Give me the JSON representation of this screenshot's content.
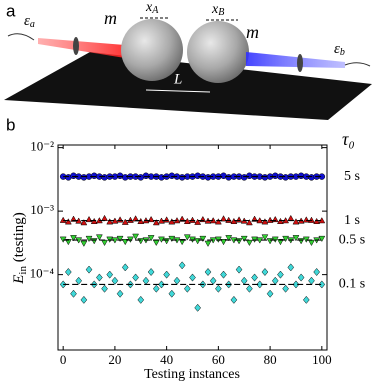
{
  "panel_labels": [
    "a",
    "b"
  ],
  "diagram": {
    "mass_left": "m",
    "mass_right": "m",
    "x_A": [
      "x",
      "A"
    ],
    "x_B": [
      "x",
      "B"
    ],
    "L": "L",
    "eps_a": [
      "ε",
      "a"
    ],
    "eps_b": [
      "ε",
      "b"
    ]
  },
  "chart_data": {
    "type": "scatter",
    "log_y": true,
    "xlabel": "Testing instances",
    "ylabel": [
      "E",
      "in",
      " (testing)"
    ],
    "legend_title": "τ₀",
    "xlim": [
      -2,
      102
    ],
    "xticks": [
      0,
      20,
      40,
      60,
      80,
      100
    ],
    "ylim": [
      6.5e-06,
      0.011
    ],
    "yticks": [
      {
        "value": 0.0001,
        "label": "10⁻⁴"
      },
      {
        "value": 0.001,
        "label": "10⁻³"
      },
      {
        "value": 0.01,
        "label": "10⁻²"
      }
    ],
    "x": [
      0,
      2,
      4,
      6,
      8,
      10,
      12,
      14,
      16,
      18,
      20,
      22,
      24,
      26,
      28,
      30,
      32,
      34,
      36,
      38,
      40,
      42,
      44,
      46,
      48,
      50,
      52,
      54,
      56,
      58,
      60,
      62,
      64,
      66,
      68,
      70,
      72,
      74,
      76,
      78,
      80,
      82,
      84,
      86,
      88,
      90,
      92,
      94,
      96,
      98,
      100
    ],
    "series": [
      {
        "name": "5 s",
        "color": "#1010d0",
        "marker": "circle",
        "mean": 0.0035,
        "values": [
          0.0035,
          0.0034,
          0.0036,
          0.0035,
          0.0034,
          0.0035,
          0.0036,
          0.0035,
          0.0034,
          0.0035,
          0.0035,
          0.0036,
          0.0034,
          0.0035,
          0.0035,
          0.0034,
          0.0036,
          0.0035,
          0.0035,
          0.0034,
          0.0035,
          0.0036,
          0.0035,
          0.0034,
          0.0035,
          0.0035,
          0.0036,
          0.0035,
          0.0034,
          0.0035,
          0.0035,
          0.0036,
          0.0034,
          0.0035,
          0.0035,
          0.0034,
          0.0036,
          0.0035,
          0.0035,
          0.0034,
          0.0035,
          0.0036,
          0.0035,
          0.0034,
          0.0035,
          0.0035,
          0.0036,
          0.0035,
          0.0034,
          0.0035,
          0.0035
        ]
      },
      {
        "name": "1 s",
        "color": "#d01010",
        "marker": "triangle-up",
        "mean": 0.00071,
        "values": [
          0.00072,
          0.00068,
          0.00075,
          0.0007,
          0.00066,
          0.00074,
          0.00069,
          0.00071,
          0.00077,
          0.00068,
          0.0007,
          0.00073,
          0.00067,
          0.00072,
          0.00076,
          0.00069,
          0.00071,
          0.00074,
          0.00066,
          0.0007,
          0.00073,
          0.00068,
          0.00071,
          0.00075,
          0.00069,
          0.00072,
          0.00067,
          0.00074,
          0.0007,
          0.00071,
          0.00068,
          0.00076,
          0.00072,
          0.00069,
          0.00073,
          0.0007,
          0.00066,
          0.00075,
          0.00071,
          0.00068,
          0.00072,
          0.00074,
          0.00069,
          0.00071,
          0.00077,
          0.00068,
          0.0007,
          0.00073,
          0.00072,
          0.00069,
          0.00071
        ]
      },
      {
        "name": "0.5 s",
        "color": "#33d033",
        "marker": "triangle-down",
        "mean": 0.00035,
        "values": [
          0.00036,
          0.00033,
          0.00038,
          0.00035,
          0.00031,
          0.00037,
          0.00034,
          0.00039,
          0.00032,
          0.00036,
          0.00035,
          0.00037,
          0.00033,
          0.00036,
          0.0004,
          0.00034,
          0.00035,
          0.00038,
          0.00032,
          0.00036,
          0.00034,
          0.00037,
          0.00035,
          0.00033,
          0.00039,
          0.00036,
          0.00034,
          0.00037,
          0.00031,
          0.00035,
          0.00036,
          0.00033,
          0.00038,
          0.00035,
          0.00034,
          0.00037,
          0.00032,
          0.00036,
          0.00035,
          0.00039,
          0.00034,
          0.00036,
          0.00033,
          0.00037,
          0.00035,
          0.00038,
          0.00034,
          0.00036,
          0.00032,
          0.00035,
          0.00037
        ]
      },
      {
        "name": "0.1 s",
        "color": "#40d8d8",
        "marker": "diamond",
        "mean": 7e-05,
        "values": [
          7e-05,
          0.00011,
          5e-05,
          8e-05,
          4e-05,
          0.00012,
          7e-05,
          9e-05,
          6e-05,
          0.0001,
          8e-05,
          5e-05,
          0.00013,
          7e-05,
          9e-05,
          4e-05,
          8e-05,
          0.00011,
          6e-05,
          7e-05,
          0.0001,
          5e-05,
          8e-05,
          0.00014,
          6e-05,
          9e-05,
          3e-05,
          7e-05,
          0.00011,
          8e-05,
          6e-05,
          0.0001,
          7e-05,
          4e-05,
          0.00012,
          8e-05,
          6e-05,
          9e-05,
          7e-05,
          0.00011,
          5e-05,
          8e-05,
          0.0001,
          6e-05,
          0.00013,
          7e-05,
          9e-05,
          4e-05,
          8e-05,
          0.00011,
          7e-05
        ]
      }
    ]
  }
}
